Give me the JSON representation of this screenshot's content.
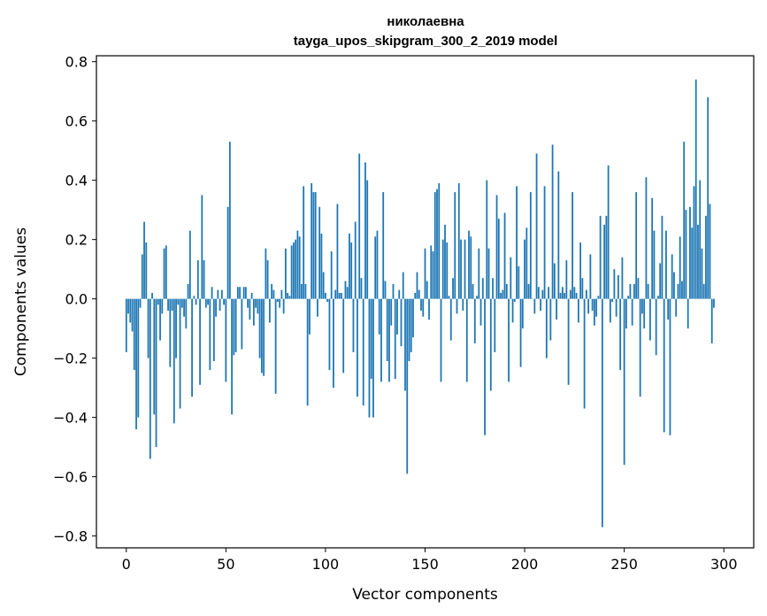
{
  "chart_data": {
    "type": "bar",
    "title_lines": [
      "николаевна",
      "tayga_upos_skipgram_300_2_2019 model"
    ],
    "xlabel": "Vector components",
    "ylabel": "Components values",
    "xlim": [
      -15,
      315
    ],
    "ylim": [
      -0.84,
      0.82
    ],
    "xticks": [
      0,
      50,
      100,
      150,
      200,
      250,
      300
    ],
    "xtick_labels": [
      "0",
      "50",
      "100",
      "150",
      "200",
      "250",
      "300"
    ],
    "yticks": [
      -0.8,
      -0.6,
      -0.4,
      -0.2,
      0.0,
      0.2,
      0.4,
      0.6,
      0.8
    ],
    "ytick_labels": [
      "−0.8",
      "−0.6",
      "−0.4",
      "−0.2",
      "0.0",
      "0.2",
      "0.4",
      "0.6",
      "0.8"
    ],
    "grid": false,
    "bar_color": "#1f77b4",
    "x": "indices 0..299",
    "values": [
      -0.18,
      -0.05,
      -0.08,
      -0.11,
      -0.24,
      -0.44,
      -0.4,
      -0.03,
      0.15,
      0.26,
      0.19,
      -0.2,
      -0.54,
      0.02,
      -0.39,
      -0.5,
      -0.02,
      -0.14,
      -0.05,
      0.17,
      0.18,
      -0.04,
      -0.23,
      -0.04,
      -0.42,
      -0.2,
      -0.02,
      -0.37,
      -0.03,
      -0.06,
      -0.1,
      0.05,
      0.23,
      -0.33,
      0.01,
      -0.02,
      0.13,
      -0.29,
      0.35,
      0.13,
      -0.03,
      -0.02,
      -0.24,
      0.04,
      -0.21,
      -0.06,
      0.03,
      -0.04,
      0.03,
      -0.02,
      -0.28,
      0.31,
      0.53,
      -0.39,
      -0.19,
      -0.18,
      0.04,
      0.04,
      -0.17,
      0.04,
      0.04,
      -0.03,
      -0.07,
      0.02,
      -0.09,
      -0.03,
      -0.05,
      -0.2,
      -0.25,
      -0.26,
      0.17,
      0.13,
      -0.08,
      0.05,
      0.03,
      -0.32,
      -0.01,
      -0.03,
      0.03,
      -0.05,
      0.17,
      0.02,
      0.01,
      0.18,
      0.19,
      0.2,
      0.23,
      0.21,
      0.05,
      0.38,
      0.05,
      -0.36,
      -0.12,
      0.39,
      0.36,
      0.36,
      -0.06,
      0.31,
      0.22,
      0.09,
      0.02,
      -0.01,
      -0.24,
      0.16,
      -0.3,
      0.03,
      0.32,
      0.02,
      0.02,
      -0.25,
      0.06,
      0.04,
      0.22,
      0.19,
      -0.18,
      0.26,
      -0.33,
      0.49,
      0.07,
      -0.36,
      0.46,
      0.4,
      -0.4,
      -0.27,
      -0.4,
      0.21,
      0.23,
      -0.12,
      -0.28,
      0.36,
      0.06,
      -0.21,
      -0.28,
      -0.09,
      0.05,
      -0.27,
      -0.12,
      0.03,
      -0.16,
      0.09,
      -0.31,
      -0.59,
      -0.21,
      -0.18,
      -0.13,
      0.02,
      0.09,
      0.03,
      -0.04,
      -0.06,
      0.17,
      0.06,
      -0.07,
      0.18,
      0.16,
      0.36,
      0.37,
      0.39,
      -0.28,
      0.2,
      0.25,
      0.19,
      0.01,
      -0.14,
      0.07,
      0.36,
      -0.05,
      0.39,
      0.2,
      -0.04,
      0.2,
      -0.28,
      0.23,
      0.21,
      0.05,
      -0.15,
      0.01,
      0.17,
      -0.09,
      0.07,
      -0.46,
      0.4,
      0.17,
      -0.31,
      0.07,
      -0.18,
      0.35,
      0.27,
      0.02,
      0.03,
      0.29,
      0.05,
      -0.28,
      0.14,
      -0.08,
      -0.01,
      0.38,
      0.11,
      -0.23,
      -0.1,
      0.2,
      0.24,
      0.05,
      0.36,
      0.0,
      -0.05,
      0.49,
      0.04,
      -0.04,
      0.03,
      0.38,
      -0.2,
      0.04,
      -0.14,
      0.52,
      0.12,
      -0.07,
      0.43,
      0.02,
      0.04,
      0.02,
      0.13,
      -0.29,
      0.03,
      0.36,
      0.04,
      0.02,
      -0.08,
      0.19,
      0.07,
      -0.37,
      0.03,
      -0.05,
      0.15,
      -0.04,
      -0.09,
      -0.06,
      0.01,
      0.28,
      -0.77,
      0.25,
      0.28,
      0.45,
      -0.08,
      -0.01,
      0.1,
      -0.06,
      0.08,
      -0.24,
      0.14,
      -0.56,
      -0.1,
      0.01,
      0.05,
      -0.09,
      0.05,
      0.36,
      0.07,
      -0.33,
      -0.05,
      -0.1,
      0.41,
      0.05,
      -0.14,
      0.34,
      0.23,
      -0.19,
      0.01,
      0.12,
      0.28,
      -0.45,
      0.23,
      -0.07,
      -0.46,
      0.15,
      0.09,
      -0.06,
      0.05,
      0.21,
      0.06,
      0.53,
      0.3,
      -0.1,
      0.31,
      0.24,
      0.38,
      0.74,
      0.25,
      0.4,
      0.17,
      0.05,
      0.28,
      0.68,
      0.32,
      -0.15,
      -0.03
    ]
  }
}
